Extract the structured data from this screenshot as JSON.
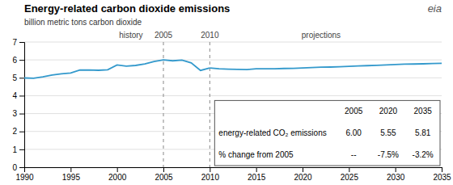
{
  "chart_data": {
    "type": "line",
    "title": "Energy-related  carbon dioxide emissions",
    "ylabel": "billion metric tons carbon dioxide",
    "xlim": [
      1990,
      2035
    ],
    "ylim": [
      0,
      7
    ],
    "xticks": [
      1990,
      1995,
      2000,
      2005,
      2010,
      2015,
      2020,
      2025,
      2030,
      2035
    ],
    "yticks": [
      0,
      1,
      2,
      3,
      4,
      5,
      6,
      7
    ],
    "grid": true,
    "series": [
      {
        "color": "#3399cc",
        "x": [
          1990,
          1991,
          1992,
          1993,
          1994,
          1995,
          1996,
          1997,
          1998,
          1999,
          2000,
          2001,
          2002,
          2003,
          2004,
          2005,
          2006,
          2007,
          2008,
          2009,
          2010
        ],
        "values": [
          4.99,
          4.97,
          5.05,
          5.15,
          5.22,
          5.27,
          5.43,
          5.44,
          5.42,
          5.45,
          5.72,
          5.65,
          5.69,
          5.78,
          5.91,
          6.0,
          5.95,
          5.99,
          5.83,
          5.41,
          5.55
        ]
      },
      {
        "color": "#3399cc",
        "x": [
          2010,
          2011,
          2012,
          2013,
          2014,
          2015,
          2016,
          2017,
          2018,
          2019,
          2020,
          2021,
          2022,
          2023,
          2024,
          2025,
          2026,
          2027,
          2028,
          2029,
          2030,
          2031,
          2032,
          2033,
          2034,
          2035
        ],
        "values": [
          5.55,
          5.5,
          5.48,
          5.47,
          5.46,
          5.5,
          5.5,
          5.5,
          5.52,
          5.53,
          5.55,
          5.57,
          5.59,
          5.6,
          5.62,
          5.64,
          5.66,
          5.68,
          5.7,
          5.72,
          5.74,
          5.76,
          5.77,
          5.78,
          5.8,
          5.81
        ]
      }
    ],
    "vlines": [
      {
        "value": 2005,
        "label": "2005",
        "line_style": "dashed"
      },
      {
        "value": 2010,
        "label": "2010",
        "line_style": "dashed"
      }
    ],
    "annotations": [
      {
        "text": "history",
        "x": 2001.5
      },
      {
        "text": "projections",
        "x": 2022
      },
      {
        "text": "eia"
      }
    ],
    "table": {
      "columns": [
        "2005",
        "2020",
        "2035"
      ],
      "rows": [
        {
          "label": "energy-related CO₂ emissions",
          "values": [
            "6.00",
            "5.55",
            "5.81"
          ]
        },
        {
          "label": "% change from 2005",
          "values": [
            "--",
            "-7.5%",
            "-3.2%"
          ]
        }
      ]
    }
  }
}
